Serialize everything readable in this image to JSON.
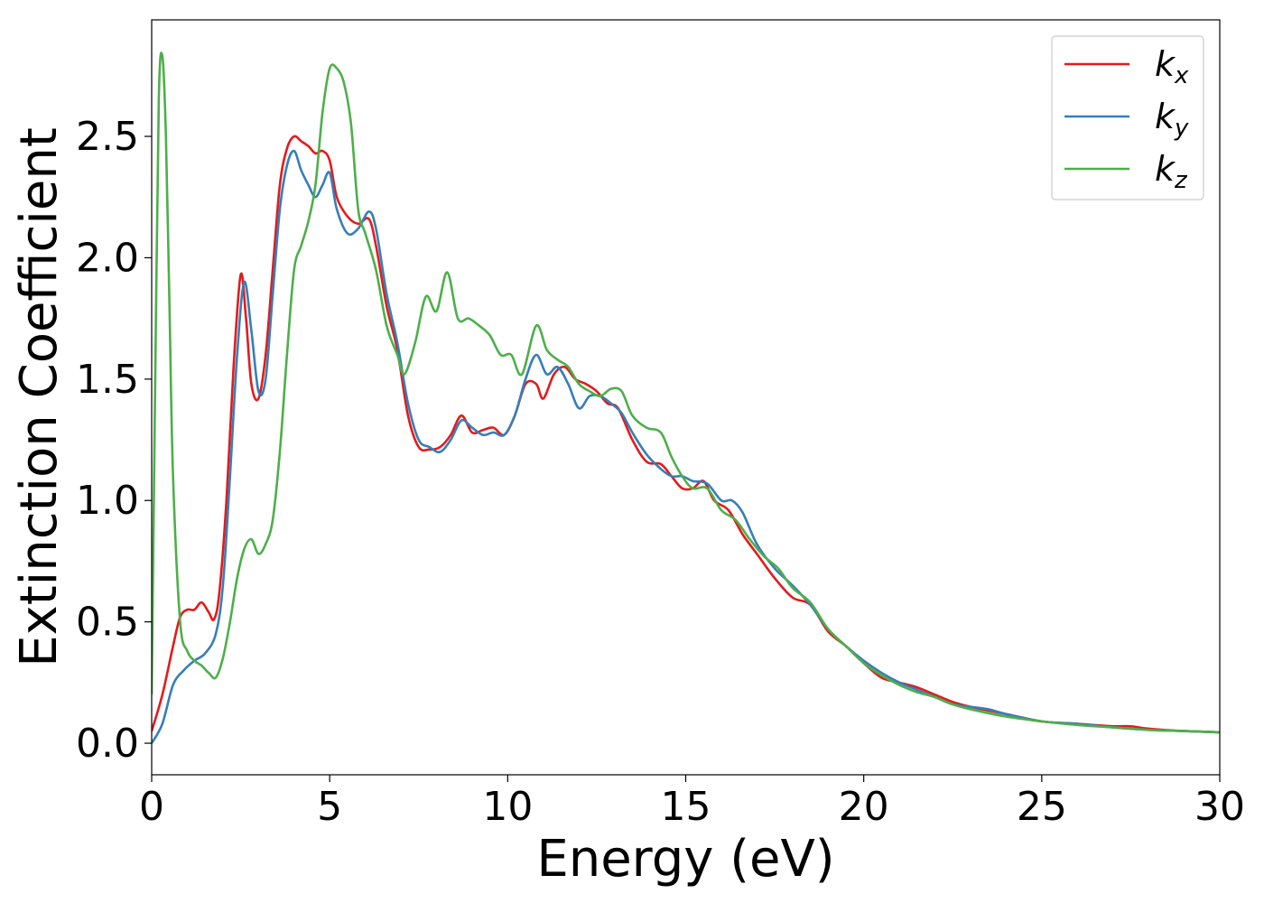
{
  "chart_data": {
    "type": "line",
    "title": "",
    "xlabel": "Energy (eV)",
    "ylabel": "Extinction Coefficient",
    "xlim": [
      0,
      30
    ],
    "ylim": [
      -0.13,
      2.98
    ],
    "xticks": [
      0,
      5,
      10,
      15,
      20,
      25,
      30
    ],
    "xtick_labels": [
      "0",
      "5",
      "10",
      "15",
      "20",
      "25",
      "30"
    ],
    "yticks": [
      0.0,
      0.5,
      1.0,
      1.5,
      2.0,
      2.5
    ],
    "ytick_labels": [
      "0.0",
      "0.5",
      "1.0",
      "1.5",
      "2.0",
      "2.5"
    ],
    "grid": false,
    "legend_position": "top-right",
    "series": [
      {
        "name": "k_x",
        "label_main": "k",
        "label_sub": "x",
        "color": "#e41a1c",
        "x": [
          0,
          0.3,
          0.6,
          0.8,
          1.0,
          1.2,
          1.4,
          1.6,
          1.75,
          1.9,
          2.1,
          2.3,
          2.5,
          2.65,
          2.8,
          3.0,
          3.2,
          3.4,
          3.6,
          3.8,
          4.0,
          4.2,
          4.4,
          4.6,
          4.8,
          5.0,
          5.2,
          5.5,
          5.8,
          6.1,
          6.3,
          6.6,
          6.9,
          7.2,
          7.5,
          7.8,
          8.1,
          8.4,
          8.7,
          9.0,
          9.3,
          9.6,
          9.9,
          10.2,
          10.5,
          10.8,
          11.0,
          11.3,
          11.6,
          11.9,
          12.2,
          12.5,
          12.8,
          13.1,
          13.5,
          13.9,
          14.3,
          14.6,
          14.9,
          15.2,
          15.5,
          15.8,
          16.2,
          16.6,
          17.0,
          17.5,
          18.0,
          18.5,
          19.0,
          19.5,
          20.0,
          20.5,
          21.0,
          21.5,
          22.0,
          22.5,
          23.0,
          24.0,
          25.0,
          26.0,
          27.0,
          27.5,
          28.0,
          29.0,
          30.0
        ],
        "y": [
          0.05,
          0.2,
          0.4,
          0.52,
          0.55,
          0.55,
          0.58,
          0.54,
          0.51,
          0.62,
          1.0,
          1.55,
          1.93,
          1.75,
          1.48,
          1.42,
          1.6,
          1.95,
          2.3,
          2.45,
          2.5,
          2.48,
          2.46,
          2.43,
          2.44,
          2.4,
          2.25,
          2.17,
          2.14,
          2.16,
          2.05,
          1.8,
          1.62,
          1.35,
          1.22,
          1.21,
          1.22,
          1.27,
          1.35,
          1.28,
          1.29,
          1.3,
          1.27,
          1.35,
          1.48,
          1.48,
          1.42,
          1.52,
          1.55,
          1.5,
          1.48,
          1.45,
          1.4,
          1.38,
          1.25,
          1.16,
          1.15,
          1.1,
          1.05,
          1.05,
          1.08,
          1.0,
          0.96,
          0.86,
          0.78,
          0.68,
          0.6,
          0.57,
          0.46,
          0.4,
          0.33,
          0.27,
          0.25,
          0.23,
          0.2,
          0.17,
          0.15,
          0.12,
          0.09,
          0.08,
          0.07,
          0.07,
          0.06,
          0.05,
          0.045
        ]
      },
      {
        "name": "k_y",
        "label_main": "k",
        "label_sub": "y",
        "color": "#377eb8",
        "x": [
          0,
          0.3,
          0.6,
          0.9,
          1.2,
          1.5,
          1.8,
          2.0,
          2.2,
          2.4,
          2.6,
          2.8,
          3.0,
          3.2,
          3.4,
          3.6,
          3.8,
          4.0,
          4.2,
          4.4,
          4.6,
          4.8,
          5.0,
          5.2,
          5.5,
          5.8,
          6.1,
          6.3,
          6.6,
          6.9,
          7.2,
          7.5,
          7.8,
          8.1,
          8.4,
          8.7,
          9.0,
          9.3,
          9.6,
          9.9,
          10.2,
          10.5,
          10.8,
          11.1,
          11.4,
          11.7,
          12.0,
          12.3,
          12.6,
          12.9,
          13.2,
          13.5,
          13.9,
          14.3,
          14.6,
          14.9,
          15.2,
          15.6,
          16.0,
          16.3,
          16.6,
          17.0,
          17.5,
          18.0,
          18.5,
          19.0,
          19.5,
          20.0,
          20.5,
          21.0,
          21.5,
          22.0,
          22.5,
          23.0,
          23.5,
          24.0,
          25.0,
          26.0,
          27.0,
          28.0,
          29.0,
          30.0
        ],
        "y": [
          0.0,
          0.08,
          0.24,
          0.3,
          0.34,
          0.37,
          0.45,
          0.65,
          1.1,
          1.6,
          1.9,
          1.7,
          1.45,
          1.5,
          1.85,
          2.2,
          2.38,
          2.44,
          2.36,
          2.3,
          2.25,
          2.3,
          2.35,
          2.2,
          2.1,
          2.12,
          2.19,
          2.12,
          1.85,
          1.65,
          1.4,
          1.25,
          1.22,
          1.2,
          1.25,
          1.33,
          1.3,
          1.27,
          1.28,
          1.27,
          1.35,
          1.5,
          1.6,
          1.52,
          1.55,
          1.48,
          1.38,
          1.43,
          1.43,
          1.4,
          1.36,
          1.28,
          1.19,
          1.13,
          1.1,
          1.1,
          1.08,
          1.07,
          1.0,
          1.0,
          0.95,
          0.82,
          0.72,
          0.65,
          0.57,
          0.47,
          0.4,
          0.34,
          0.29,
          0.25,
          0.22,
          0.19,
          0.16,
          0.15,
          0.14,
          0.12,
          0.09,
          0.08,
          0.065,
          0.055,
          0.05,
          0.045
        ]
      },
      {
        "name": "k_z",
        "label_main": "k",
        "label_sub": "z",
        "color": "#4daf4a",
        "x": [
          0,
          0.1,
          0.2,
          0.3,
          0.4,
          0.5,
          0.6,
          0.8,
          1.0,
          1.2,
          1.4,
          1.6,
          1.8,
          2.0,
          2.2,
          2.4,
          2.6,
          2.8,
          3.0,
          3.2,
          3.4,
          3.6,
          3.8,
          4.0,
          4.2,
          4.4,
          4.6,
          4.8,
          5.0,
          5.2,
          5.4,
          5.6,
          5.8,
          6.0,
          6.3,
          6.6,
          6.9,
          7.1,
          7.4,
          7.7,
          8.0,
          8.3,
          8.6,
          8.9,
          9.2,
          9.5,
          9.8,
          10.1,
          10.4,
          10.8,
          11.1,
          11.4,
          11.7,
          12.0,
          12.3,
          12.6,
          12.9,
          13.2,
          13.5,
          13.9,
          14.3,
          14.6,
          14.9,
          15.2,
          15.6,
          16.0,
          16.4,
          16.8,
          17.2,
          17.6,
          18.0,
          18.5,
          19.0,
          19.5,
          20.0,
          20.5,
          21.0,
          21.5,
          22.0,
          22.5,
          23.0,
          24.0,
          25.0,
          26.0,
          27.0,
          28.0,
          29.0,
          30.0
        ],
        "y": [
          0.2,
          1.5,
          2.65,
          2.83,
          2.5,
          1.8,
          1.1,
          0.5,
          0.38,
          0.34,
          0.32,
          0.29,
          0.27,
          0.35,
          0.5,
          0.68,
          0.8,
          0.84,
          0.78,
          0.82,
          0.92,
          1.2,
          1.6,
          1.95,
          2.05,
          2.15,
          2.3,
          2.6,
          2.78,
          2.78,
          2.72,
          2.55,
          2.2,
          2.1,
          1.95,
          1.72,
          1.6,
          1.52,
          1.65,
          1.84,
          1.78,
          1.94,
          1.75,
          1.75,
          1.72,
          1.68,
          1.6,
          1.6,
          1.52,
          1.72,
          1.62,
          1.58,
          1.55,
          1.48,
          1.45,
          1.43,
          1.46,
          1.45,
          1.35,
          1.3,
          1.28,
          1.18,
          1.1,
          1.05,
          1.05,
          0.96,
          0.92,
          0.84,
          0.77,
          0.72,
          0.64,
          0.58,
          0.47,
          0.4,
          0.33,
          0.28,
          0.24,
          0.21,
          0.19,
          0.16,
          0.14,
          0.11,
          0.09,
          0.075,
          0.065,
          0.055,
          0.05,
          0.045
        ]
      }
    ]
  }
}
